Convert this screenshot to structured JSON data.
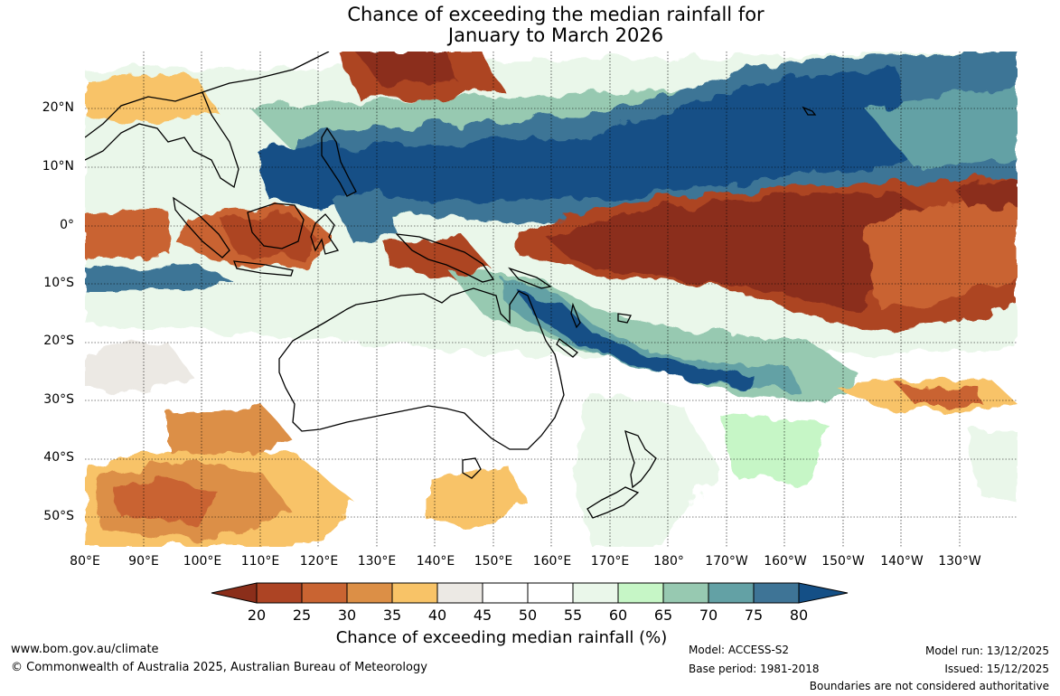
{
  "title": {
    "line1": "Chance of exceeding the median rainfall for",
    "line2": "January to March 2026"
  },
  "map": {
    "lat_labels": [
      "20°N",
      "10°N",
      "0°",
      "10°S",
      "20°S",
      "30°S",
      "40°S",
      "50°S"
    ],
    "lon_labels": [
      "80°E",
      "90°E",
      "100°E",
      "110°E",
      "120°E",
      "130°E",
      "140°E",
      "150°E",
      "160°E",
      "170°E",
      "180°",
      "170°W",
      "160°W",
      "150°W",
      "140°W",
      "130°W"
    ]
  },
  "legend": {
    "ticks": [
      "20",
      "25",
      "30",
      "35",
      "40",
      "45",
      "50",
      "55",
      "60",
      "65",
      "70",
      "75",
      "80"
    ],
    "colors": [
      "#8b2e1a",
      "#ad4424",
      "#c96432",
      "#dc8f46",
      "#f8c367",
      "#ece9e4",
      "#ffffff",
      "#ffffff",
      "#eaf7ea",
      "#c6f6c6",
      "#97c9b1",
      "#63a1a5",
      "#3e7496",
      "#144f86"
    ],
    "label": "Chance of exceeding median rainfall (%)"
  },
  "footer": {
    "website": "www.bom.gov.au/climate",
    "copyright": "© Commonwealth of Australia 2025, Australian Bureau of Meteorology",
    "model": "Model: ACCESS-S2",
    "base_period": "Base period: 1981-2018",
    "model_run": "Model run: 13/12/2025",
    "issued": "Issued: 15/12/2025",
    "disclaimer": "Boundaries are not considered authoritative"
  }
}
